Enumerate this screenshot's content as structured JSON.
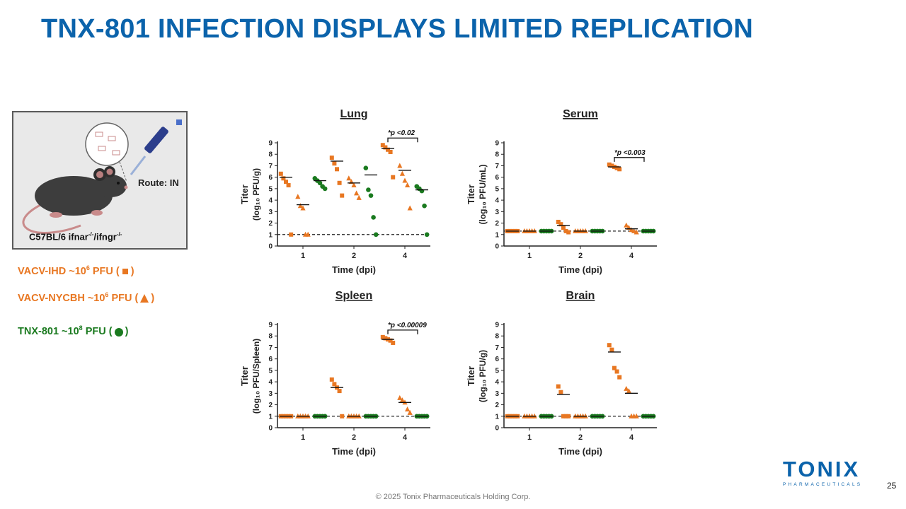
{
  "slide": {
    "title": "TNX-801 INFECTION DISPLAYS LIMITED REPLICATION",
    "route_label": "Route: IN",
    "strain_text": "C57BL/6 ifnar",
    "strain_sup1": "-/-",
    "strain_mid": "/ifngr",
    "strain_sup2": "-/-",
    "legend": [
      {
        "pre": "VACV-IHD ~10",
        "sup": "6",
        "post": " PFU (",
        "end": ")",
        "marker": "square",
        "color": "#e87722"
      },
      {
        "pre": "VACV-NYCBH ~10",
        "sup": "6",
        "post": " PFU (",
        "end": ")",
        "marker": "triangle",
        "color": "#e87722"
      },
      {
        "pre": "TNX-801 ~10",
        "sup": "8",
        "post": " PFU (",
        "end": ")",
        "marker": "circle",
        "color": "#1a7a1f"
      }
    ],
    "footer": "© 2025 Tonix Pharmaceuticals Holding Corp.",
    "page_number": "25",
    "logo_main": "TONIX",
    "logo_sub": "PHARMACEUTICALS"
  },
  "colors": {
    "title": "#0b63ab",
    "orange": "#e87722",
    "green": "#1a7a1f"
  },
  "chart_data": [
    {
      "type": "scatter",
      "title": "Lung",
      "ylabel_line1": "Titer",
      "ylabel_line2": "(log₁₀ PFU/g)",
      "xlabel": "Time (dpi)",
      "categories": [
        "1",
        "2",
        "4"
      ],
      "ylim": [
        0,
        9
      ],
      "limit_of_detection": 1,
      "annotation": "*p <0.02",
      "series": [
        {
          "marker": "square",
          "values": [
            [
              6.3,
              5.9,
              5.6,
              5.3,
              1.0
            ],
            [
              7.7,
              7.2,
              6.7,
              5.5,
              4.4
            ],
            [
              8.8,
              8.6,
              8.4,
              8.2,
              6.0
            ]
          ],
          "means": [
            6.0,
            7.4,
            8.5
          ]
        },
        {
          "marker": "triangle",
          "values": [
            [
              4.3,
              3.5,
              3.3,
              1.0,
              1.0
            ],
            [
              5.9,
              5.6,
              5.3,
              4.6,
              4.2
            ],
            [
              7.0,
              6.3,
              5.7,
              5.3,
              3.3
            ]
          ],
          "means": [
            3.6,
            5.5,
            6.6
          ]
        },
        {
          "marker": "circle",
          "values": [
            [
              5.9,
              5.7,
              5.5,
              5.2,
              5.0
            ],
            [
              6.8,
              4.9,
              4.4,
              2.5,
              1.0
            ],
            [
              5.2,
              5.0,
              4.8,
              3.5,
              1.0
            ]
          ],
          "means": [
            5.7,
            6.2,
            4.9
          ]
        }
      ]
    },
    {
      "type": "scatter",
      "title": "Serum",
      "ylabel_line1": "Titer",
      "ylabel_line2": "(log₁₀ PFU/mL)",
      "xlabel": "Time (dpi)",
      "categories": [
        "1",
        "2",
        "4"
      ],
      "ylim": [
        0,
        9
      ],
      "limit_of_detection": 1.3,
      "annotation": "*p <0.003",
      "series": [
        {
          "marker": "square",
          "values": [
            [
              1.3,
              1.3,
              1.3,
              1.3,
              1.3
            ],
            [
              2.1,
              1.9,
              1.6,
              1.3,
              1.2
            ],
            [
              7.1,
              7.0,
              6.9,
              6.8,
              6.7
            ]
          ],
          "means": [
            1.3,
            1.8,
            6.9
          ]
        },
        {
          "marker": "triangle",
          "values": [
            [
              1.3,
              1.3,
              1.3,
              1.3,
              1.3
            ],
            [
              1.3,
              1.3,
              1.3,
              1.3,
              1.3
            ],
            [
              1.8,
              1.6,
              1.4,
              1.3,
              1.2
            ]
          ],
          "means": [
            1.3,
            1.3,
            1.5
          ]
        },
        {
          "marker": "circle",
          "values": [
            [
              1.3,
              1.3,
              1.3,
              1.3,
              1.3
            ],
            [
              1.3,
              1.3,
              1.3,
              1.3,
              1.3
            ],
            [
              1.3,
              1.3,
              1.3,
              1.3,
              1.3
            ]
          ],
          "means": [
            1.3,
            1.3,
            1.3
          ]
        }
      ]
    },
    {
      "type": "scatter",
      "title": "Spleen",
      "ylabel_line1": "Titer",
      "ylabel_line2": "(log₁₀ PFU/Spleen)",
      "xlabel": "Time (dpi)",
      "categories": [
        "1",
        "2",
        "4"
      ],
      "ylim": [
        0,
        9
      ],
      "limit_of_detection": 1,
      "annotation": "*p <0.00009",
      "series": [
        {
          "marker": "square",
          "values": [
            [
              1.0,
              1.0,
              1.0,
              1.0,
              1.0
            ],
            [
              4.2,
              3.8,
              3.5,
              3.2,
              1.0
            ],
            [
              7.9,
              7.8,
              7.7,
              7.6,
              7.4
            ]
          ],
          "means": [
            1.0,
            3.5,
            7.7
          ]
        },
        {
          "marker": "triangle",
          "values": [
            [
              1.0,
              1.0,
              1.0,
              1.0,
              1.0
            ],
            [
              1.0,
              1.0,
              1.0,
              1.0,
              1.0
            ],
            [
              2.6,
              2.4,
              2.2,
              1.6,
              1.3
            ]
          ],
          "means": [
            1.0,
            1.0,
            2.2
          ]
        },
        {
          "marker": "circle",
          "values": [
            [
              1.0,
              1.0,
              1.0,
              1.0,
              1.0
            ],
            [
              1.0,
              1.0,
              1.0,
              1.0,
              1.0
            ],
            [
              1.0,
              1.0,
              1.0,
              1.0,
              1.0
            ]
          ],
          "means": [
            1.0,
            1.0,
            1.0
          ]
        }
      ]
    },
    {
      "type": "scatter",
      "title": "Brain",
      "ylabel_line1": "Titer",
      "ylabel_line2": "(log₁₀ PFU/g)",
      "xlabel": "Time (dpi)",
      "categories": [
        "1",
        "2",
        "4"
      ],
      "ylim": [
        0,
        9
      ],
      "limit_of_detection": 1,
      "annotation": "",
      "series": [
        {
          "marker": "square",
          "values": [
            [
              1.0,
              1.0,
              1.0,
              1.0,
              1.0
            ],
            [
              3.6,
              3.1,
              1.0,
              1.0,
              1.0
            ],
            [
              7.2,
              6.8,
              5.2,
              4.9,
              4.4
            ]
          ],
          "means": [
            1.0,
            2.9,
            6.6
          ]
        },
        {
          "marker": "triangle",
          "values": [
            [
              1.0,
              1.0,
              1.0,
              1.0,
              1.0
            ],
            [
              1.0,
              1.0,
              1.0,
              1.0,
              1.0
            ],
            [
              3.4,
              3.2,
              1.0,
              1.0,
              1.0
            ]
          ],
          "means": [
            1.0,
            1.0,
            3.0
          ]
        },
        {
          "marker": "circle",
          "values": [
            [
              1.0,
              1.0,
              1.0,
              1.0,
              1.0
            ],
            [
              1.0,
              1.0,
              1.0,
              1.0,
              1.0
            ],
            [
              1.0,
              1.0,
              1.0,
              1.0,
              1.0
            ]
          ],
          "means": [
            1.0,
            1.0,
            1.0
          ]
        }
      ]
    }
  ]
}
